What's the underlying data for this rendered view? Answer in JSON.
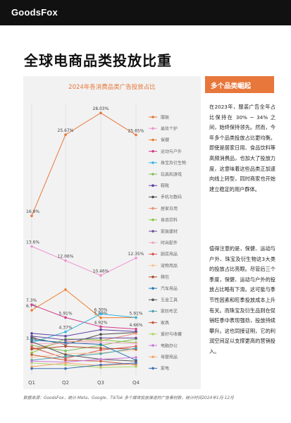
{
  "brand": "GoodsFox",
  "main_title": "全球电商品类投放比重",
  "side": {
    "header": "多个品类崛起",
    "para1": "在2023年，服装广告全年占比保持在 30% ~ 34% 之间，始终保持领先。然而，今年多个品类投放占比更均衡。即使是居家日用、食品饮料等高频消费品，也加大了投放力度，这意味着这些品类正加速向线上转型，同时商家也开始建立稳定的用户群体。",
    "para2": "值得注意的是，保健、运动与户外、珠宝及衍生物这3大类的投放占比亮眼。尽管后三个季度，保健、运动与户外的投放占比略有下滑。这可能与季节性因素和旺季投放成本上升有关。而珠宝及衍生品则在促销旺季中表现强劲，投放持续攀升。这也同接证明，它的利润空间足以支撑更高的营销投入。"
  },
  "footnote": "数据来源：GoodsFox，统计 Meta、Google、TikTok 多个媒体投放渠道的广告素材数，统计时间2024年1月-12月",
  "colors": {
    "accent": "#e7773a",
    "topbar": "#111111",
    "chart_bg": "#f2f2f2"
  },
  "chart_data": {
    "type": "line",
    "title": "2024年各消费品类广告投放占比",
    "categories": [
      "Q1",
      "Q2",
      "Q3",
      "Q4"
    ],
    "series": [
      {
        "name": "服装",
        "color": "#e7773a",
        "values": [
          16.9,
          25.67,
          28.03,
          25.65
        ],
        "labels": [
          "16.9%",
          "25.67%",
          "28.03%",
          "25.65%"
        ]
      },
      {
        "name": "美妆个护",
        "color": "#ef93cf",
        "values": [
          13.6,
          12.06,
          10.46,
          12.35
        ],
        "labels": [
          "13.6%",
          "12.06%",
          "10.46%",
          "12.35%"
        ]
      },
      {
        "name": "保健",
        "color": "#ef7f2e",
        "values": [
          6.7,
          8.93,
          5.89,
          5.91
        ],
        "labels": [
          "6.7%",
          "",
          "5.89%",
          ""
        ]
      },
      {
        "name": "运动与户外",
        "color": "#d13d8c",
        "values": [
          7.3,
          5.91,
          4.92,
          4.66
        ],
        "labels": [
          "7.3%",
          "5.91%",
          "4.92%",
          "4.66%"
        ]
      },
      {
        "name": "珠宝及衍生物",
        "color": "#2fb6e0",
        "values": [
          3.2,
          4.37,
          6.3,
          5.91
        ],
        "labels": [
          "3.2%",
          "4.37%",
          "6.30%",
          "5.91%"
        ]
      },
      {
        "name": "玩具和游戏",
        "color": "#7fbf57",
        "values": [
          2.9,
          2.3,
          2.9,
          3.6
        ],
        "labels": []
      },
      {
        "name": "鞋靴",
        "color": "#5b3fa5",
        "values": [
          4.2,
          3.9,
          4.6,
          4.4
        ],
        "labels": []
      },
      {
        "name": "手机与数码",
        "color": "#4a4a4a",
        "values": [
          3.7,
          3.0,
          4.1,
          4.3
        ],
        "labels": []
      },
      {
        "name": "居家日用",
        "color": "#ee8c77",
        "values": [
          2.5,
          3.3,
          3.4,
          4.2
        ],
        "labels": []
      },
      {
        "name": "食品饮料",
        "color": "#8cc63f",
        "values": [
          2.1,
          3.6,
          3.5,
          3.2
        ],
        "labels": []
      },
      {
        "name": "家装建材",
        "color": "#6a4c9c",
        "values": [
          3.9,
          3.5,
          3.7,
          3.7
        ],
        "labels": []
      },
      {
        "name": "时尚配件",
        "color": "#f2a7c8",
        "values": [
          3.1,
          3.1,
          3.2,
          3.1
        ],
        "labels": []
      },
      {
        "name": "厨房用品",
        "color": "#d9534f",
        "values": [
          2.7,
          1.5,
          2.4,
          2.8
        ],
        "labels": []
      },
      {
        "name": "宠物用品",
        "color": "#f5c99a",
        "values": [
          1.6,
          2.0,
          2.1,
          2.4
        ],
        "labels": []
      },
      {
        "name": "箱包",
        "color": "#b04a2a",
        "values": [
          2.5,
          2.8,
          2.6,
          2.5
        ],
        "labels": []
      },
      {
        "name": "汽车用品",
        "color": "#1f77b4",
        "values": [
          3.5,
          3.2,
          3.0,
          1.3
        ],
        "labels": []
      },
      {
        "name": "五金工具",
        "color": "#555555",
        "values": [
          3.3,
          1.9,
          1.4,
          1.2
        ],
        "labels": []
      },
      {
        "name": "家纺布艺",
        "color": "#4aa3b0",
        "values": [
          1.3,
          1.7,
          2.0,
          2.6
        ],
        "labels": []
      },
      {
        "name": "家具",
        "color": "#c85a3a",
        "values": [
          1.9,
          1.3,
          1.2,
          0.8
        ],
        "labels": []
      },
      {
        "name": "爱好与收藏",
        "color": "#b3d66b",
        "values": [
          1.0,
          0.8,
          0.5,
          0.6
        ],
        "labels": []
      },
      {
        "name": "电脑办公",
        "color": "#cc77dd",
        "values": [
          1.2,
          1.1,
          1.4,
          1.6
        ],
        "labels": []
      },
      {
        "name": "母婴用品",
        "color": "#f3a76c",
        "values": [
          0.6,
          1.0,
          0.7,
          0.9
        ],
        "labels": []
      },
      {
        "name": "家电",
        "color": "#3d6fb6",
        "values": [
          0.4,
          0.4,
          0.8,
          1.0
        ],
        "labels": []
      }
    ]
  }
}
